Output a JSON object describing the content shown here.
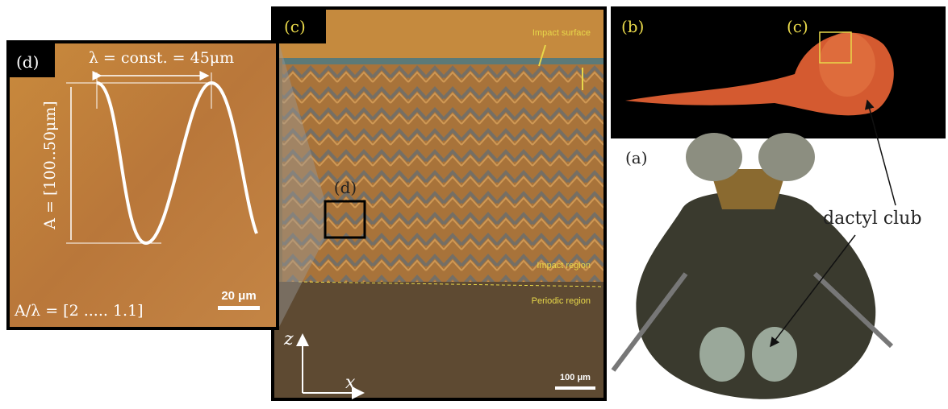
{
  "panels": {
    "d": {
      "label": "(d)",
      "wavelength": "λ = const. = 45μm",
      "amplitude": "A = [100..50μm]",
      "scale_bar": "20 μm",
      "ratio": "A/λ = [2 ..... 1.1]"
    },
    "c": {
      "label": "(c)",
      "impact_surface": "Impact surface",
      "inset_label": "(d)",
      "impact_region": "Impact region",
      "periodic_region": "Periodic region",
      "z_axis": "z",
      "x_axis": "x",
      "scale_bar": "100 μm"
    },
    "b": {
      "label": "(b)",
      "inset_label": "(c)"
    },
    "a": {
      "label": "(a)",
      "callout": "dactyl club"
    }
  }
}
